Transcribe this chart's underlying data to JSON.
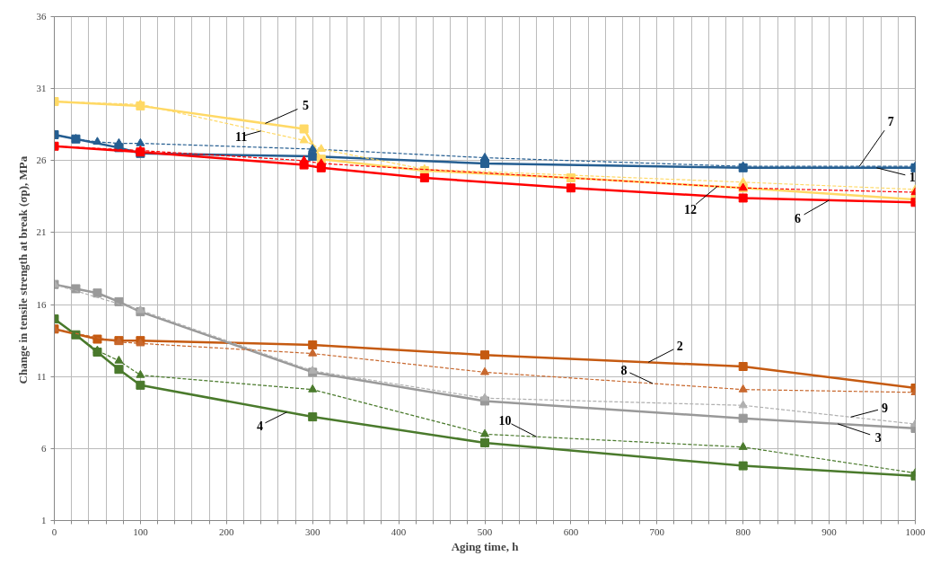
{
  "chart_data": {
    "type": "line",
    "xlabel": "Aging time, h",
    "ylabel": "Change in tensile strength  at break (σp), MPa",
    "xlim": [
      0,
      1000
    ],
    "ylim": [
      1,
      36
    ],
    "yticks": [
      1,
      6,
      11,
      16,
      21,
      26,
      31,
      36
    ],
    "xticks": [
      0,
      {
        "value": 20,
        "label": null
      },
      {
        "value": 40,
        "label": null
      },
      {
        "value": 60,
        "label": null
      },
      {
        "value": 80,
        "label": null
      },
      100,
      {
        "value": 120,
        "label": null
      },
      {
        "value": 140,
        "label": null
      },
      {
        "value": 160,
        "label": null
      },
      {
        "value": 180,
        "label": null
      },
      200,
      {
        "value": 220,
        "label": null
      },
      {
        "value": 240,
        "label": null
      },
      {
        "value": 260,
        "label": null
      },
      {
        "value": 280,
        "label": null
      },
      300,
      {
        "value": 320,
        "label": null
      },
      {
        "value": 340,
        "label": null
      },
      {
        "value": 360,
        "label": null
      },
      {
        "value": 380,
        "label": null
      },
      400,
      {
        "value": 420,
        "label": null
      },
      {
        "value": 440,
        "label": null
      },
      {
        "value": 460,
        "label": null
      },
      {
        "value": 480,
        "label": null
      },
      500,
      {
        "value": 520,
        "label": null
      },
      {
        "value": 540,
        "label": null
      },
      {
        "value": 560,
        "label": null
      },
      {
        "value": 580,
        "label": null
      },
      600,
      {
        "value": 620,
        "label": null
      },
      {
        "value": 640,
        "label": null
      },
      {
        "value": 660,
        "label": null
      },
      {
        "value": 680,
        "label": null
      },
      700,
      {
        "value": 720,
        "label": null
      },
      {
        "value": 740,
        "label": null
      },
      {
        "value": 760,
        "label": null
      },
      {
        "value": 780,
        "label": null
      },
      800,
      {
        "value": 820,
        "label": null
      },
      {
        "value": 840,
        "label": null
      },
      {
        "value": 860,
        "label": null
      },
      {
        "value": 880,
        "label": null
      },
      900,
      {
        "value": 920,
        "label": null
      },
      {
        "value": 940,
        "label": null
      },
      {
        "value": 960,
        "label": null
      },
      {
        "value": 980,
        "label": null
      },
      1000
    ],
    "grid": true,
    "series": [
      {
        "name": "1",
        "color": "#255e91",
        "marker": "square",
        "line_style": "solid",
        "x": [
          0,
          25,
          75,
          100,
          300,
          500,
          800,
          1000
        ],
        "values": [
          27.8,
          27.5,
          26.9,
          26.5,
          26.3,
          25.8,
          25.5,
          25.5
        ]
      },
      {
        "name": "2",
        "color": "#c55a11",
        "marker": "square",
        "line_style": "solid",
        "x": [
          0,
          50,
          75,
          100,
          300,
          500,
          800,
          1000
        ],
        "values": [
          14.3,
          13.6,
          13.5,
          13.5,
          13.2,
          12.5,
          11.7,
          10.2
        ]
      },
      {
        "name": "3",
        "color": "#999999",
        "marker": "square",
        "line_style": "solid",
        "x": [
          0,
          25,
          50,
          75,
          100,
          300,
          500,
          800,
          1000
        ],
        "values": [
          17.4,
          17.1,
          16.8,
          16.2,
          15.5,
          11.3,
          9.3,
          8.1,
          7.4
        ]
      },
      {
        "name": "4",
        "color": "#4a7a2c",
        "marker": "square",
        "line_style": "solid",
        "x": [
          0,
          25,
          50,
          75,
          100,
          300,
          500,
          800,
          1000
        ],
        "values": [
          15.0,
          13.9,
          12.7,
          11.5,
          10.4,
          8.2,
          6.4,
          4.8,
          4.1
        ]
      },
      {
        "name": "5",
        "color": "#ffd966",
        "marker": "square",
        "line_style": "solid",
        "x": [
          0,
          100,
          290,
          310,
          430,
          600,
          800,
          1000
        ],
        "values": [
          30.1,
          29.8,
          28.2,
          26.1,
          25.3,
          24.8,
          24.1,
          23.3
        ]
      },
      {
        "name": "6",
        "color": "#ff0000",
        "marker": "square",
        "line_style": "solid",
        "x": [
          0,
          100,
          290,
          310,
          430,
          600,
          800,
          1000
        ],
        "values": [
          27.0,
          26.6,
          25.7,
          25.5,
          24.8,
          24.1,
          23.4,
          23.1
        ]
      },
      {
        "name": "7",
        "color": "#255e91",
        "marker": "triangle",
        "line_style": "dashed",
        "x": [
          0,
          25,
          50,
          75,
          100,
          300,
          500,
          800,
          1000
        ],
        "values": [
          27.8,
          27.5,
          27.3,
          27.2,
          27.2,
          26.8,
          26.2,
          25.6,
          25.6
        ]
      },
      {
        "name": "8",
        "color": "#c8682e",
        "marker": "triangle",
        "line_style": "dashed",
        "x": [
          0,
          75,
          100,
          300,
          500,
          800,
          1000
        ],
        "values": [
          14.3,
          13.4,
          13.3,
          12.6,
          11.3,
          10.1,
          9.9
        ]
      },
      {
        "name": "9",
        "color": "#b0b0b0",
        "marker": "triangle",
        "line_style": "dashed",
        "x": [
          0,
          100,
          300,
          500,
          800,
          1000
        ],
        "values": [
          17.4,
          15.6,
          11.4,
          9.5,
          9.0,
          7.7
        ]
      },
      {
        "name": "10",
        "color": "#4a7a2c",
        "marker": "triangle",
        "line_style": "dashed",
        "x": [
          0,
          50,
          75,
          100,
          300,
          500,
          800,
          1000
        ],
        "values": [
          15.0,
          12.8,
          12.1,
          11.1,
          10.1,
          7.0,
          6.1,
          4.3
        ]
      },
      {
        "name": "11",
        "color": "#ffd966",
        "marker": "triangle",
        "line_style": "dashed",
        "x": [
          0,
          100,
          290,
          310,
          430,
          800,
          1000
        ],
        "values": [
          30.1,
          29.9,
          27.4,
          26.8,
          25.4,
          24.5,
          24.0
        ]
      },
      {
        "name": "12",
        "color": "#ff0000",
        "marker": "triangle",
        "line_style": "dashed",
        "x": [
          0,
          100,
          290,
          310,
          800,
          1000
        ],
        "values": [
          27.0,
          26.7,
          26.0,
          25.8,
          24.1,
          23.8
        ]
      }
    ]
  }
}
